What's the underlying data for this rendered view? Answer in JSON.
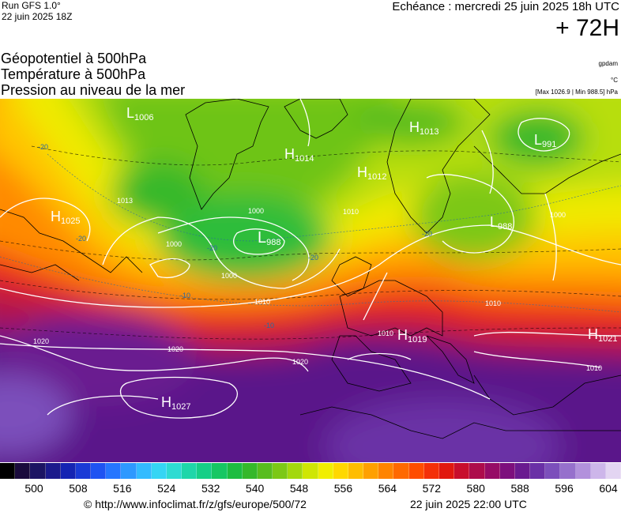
{
  "header": {
    "run": "Run GFS 1.0°",
    "run_date": "22 juin 2025 18Z",
    "valid_time": "Echéance : mercredi 25 juin 2025 18h UTC",
    "lead_time": "+ 72H"
  },
  "titles": {
    "line1": "Géopotentiel à 500hPa",
    "line2": "Température à 500hPa",
    "line3": "Pression au niveau de la mer"
  },
  "units": {
    "geopotential": "gpdam",
    "temperature": "°C",
    "pressure_range": "[Max 1026.9 | Min 988.5] hPa"
  },
  "pressure_centers": [
    {
      "type": "L",
      "value": "1006"
    },
    {
      "type": "H",
      "value": "1014"
    },
    {
      "type": "H",
      "value": "1013"
    },
    {
      "type": "L",
      "value": "991"
    },
    {
      "type": "H",
      "value": "1012"
    },
    {
      "type": "H",
      "value": "1025"
    },
    {
      "type": "L",
      "value": "988"
    },
    {
      "type": "L",
      "value": "988"
    },
    {
      "type": "H",
      "value": "1019"
    },
    {
      "type": "H",
      "value": "1021"
    },
    {
      "type": "H",
      "value": "1027"
    }
  ],
  "isobar_labels": [
    "1000",
    "1000",
    "1000",
    "1010",
    "1010",
    "1010",
    "1010",
    "1010",
    "1020",
    "1020",
    "1020",
    "1000",
    "1013"
  ],
  "temperature_labels": [
    "-20",
    "-20",
    "-10",
    "-20",
    "-20",
    "-20",
    "-10"
  ],
  "colorbar": {
    "colors": [
      "#000000",
      "#1a0b3c",
      "#1c1463",
      "#1b1a8c",
      "#1524b3",
      "#1a3ad6",
      "#1f53f2",
      "#2676ff",
      "#2e98ff",
      "#33bbff",
      "#35d5f4",
      "#2edbd2",
      "#1fd6a9",
      "#16cf87",
      "#16c763",
      "#1dbd41",
      "#35b82b",
      "#58bd1f",
      "#7cc816",
      "#a3d80d",
      "#cfe604",
      "#f1ee00",
      "#ffd800",
      "#ffbd00",
      "#ffa000",
      "#ff8400",
      "#ff6900",
      "#ff4d00",
      "#f43008",
      "#e1180e",
      "#c80e2c",
      "#ad0c4b",
      "#960c66",
      "#7d0f7d",
      "#6a1a90",
      "#6a30a6",
      "#7c4fbb",
      "#9670cc",
      "#b291dc",
      "#cdb6ea",
      "#e3d5f2"
    ],
    "ticks": [
      "500",
      "508",
      "516",
      "524",
      "532",
      "540",
      "548",
      "556",
      "564",
      "572",
      "580",
      "588",
      "596",
      "604"
    ]
  },
  "footer": {
    "credit": "© http://www.infoclimat.fr/z/gfs/europe/500/72",
    "creation_date": "22 juin 2025 22:00 UTC"
  }
}
